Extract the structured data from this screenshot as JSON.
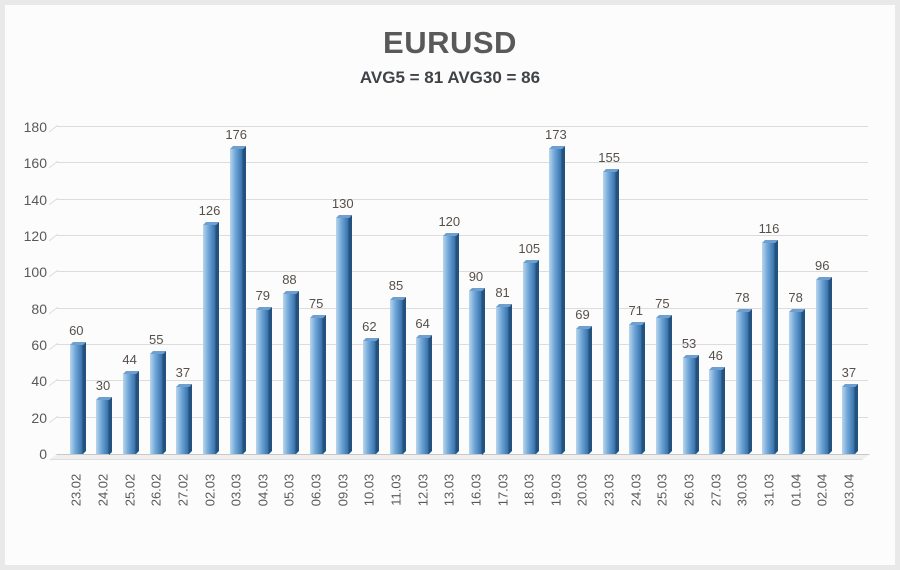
{
  "chart": {
    "title": "EURUSD",
    "subtitle": "AVG5 = 81 AVG30 = 86",
    "avg5": 81,
    "avg30": 86
  },
  "chart_data": {
    "type": "bar",
    "title": "EURUSD",
    "subtitle": "AVG5 = 81 AVG30 = 86",
    "categories": [
      "23.02",
      "24.02",
      "25.02",
      "26.02",
      "27.02",
      "02.03",
      "03.03",
      "04.03",
      "05.03",
      "06.03",
      "09.03",
      "10.03",
      "11.03",
      "12.03",
      "13.03",
      "16.03",
      "17.03",
      "18.03",
      "19.03",
      "20.03",
      "23.03",
      "24.03",
      "25.03",
      "26.03",
      "27.03",
      "30.03",
      "31.03",
      "01.04",
      "02.04",
      "03.04"
    ],
    "values": [
      60,
      30,
      44,
      55,
      37,
      126,
      176,
      79,
      88,
      75,
      130,
      62,
      85,
      64,
      120,
      90,
      81,
      105,
      173,
      69,
      155,
      71,
      75,
      53,
      46,
      78,
      116,
      78,
      96,
      37
    ],
    "xlabel": "",
    "ylabel": "",
    "ylim": [
      0,
      180
    ],
    "ytick_step": 20,
    "grid": true,
    "legend": "none",
    "data_labels": true,
    "colors": {
      "bar_light": "#b9d5ec",
      "bar_mid": "#6ba3d6",
      "bar_dark": "#3a74ab",
      "bar_edge": "#24527f",
      "bar_top": "#6f9fcf",
      "grid": "#dcdcdc",
      "text": "#595959",
      "title": "#595959",
      "subtitle": "#3f4347",
      "floor": "#efefef"
    }
  }
}
